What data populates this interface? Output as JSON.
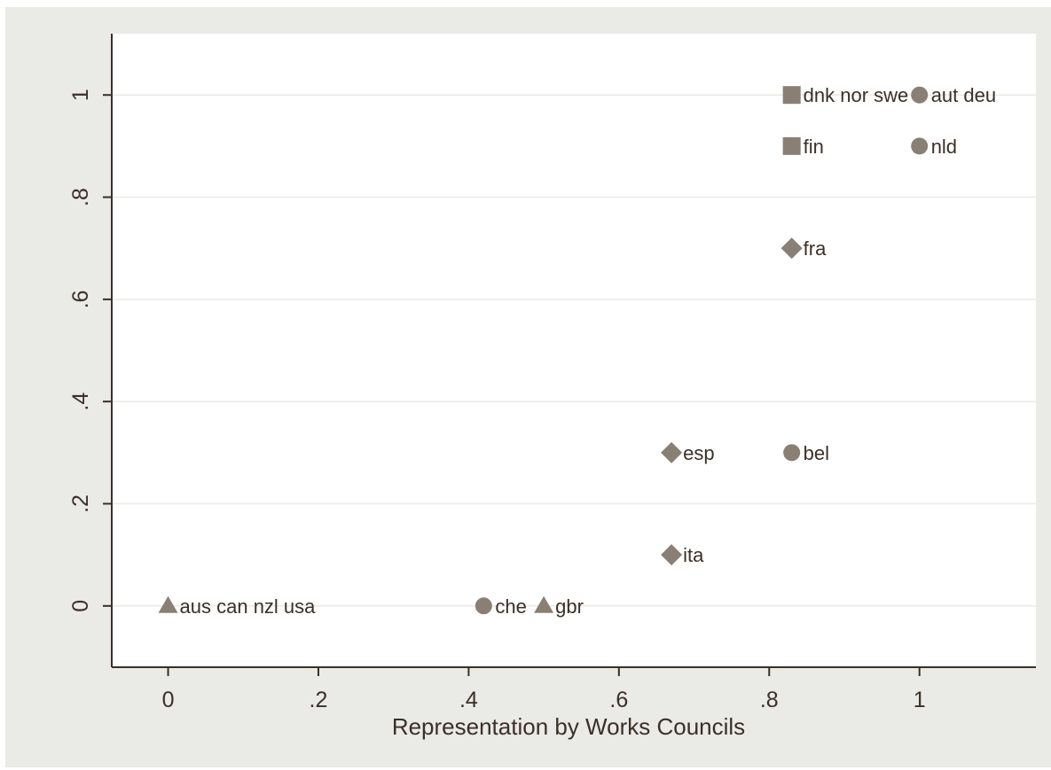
{
  "chart_data": {
    "type": "scatter",
    "title": "",
    "xlabel": "Representation by Works Councils",
    "ylabel": "",
    "xlim": [
      -0.075,
      1.155
    ],
    "ylim": [
      -0.12,
      1.12
    ],
    "xticks": [
      {
        "value": 0,
        "label": "0"
      },
      {
        "value": 0.2,
        "label": ".2"
      },
      {
        "value": 0.4,
        "label": ".4"
      },
      {
        "value": 0.6,
        "label": ".6"
      },
      {
        "value": 0.8,
        "label": ".8"
      },
      {
        "value": 1,
        "label": "1"
      }
    ],
    "yticks": [
      {
        "value": 0,
        "label": "0"
      },
      {
        "value": 0.2,
        "label": ".2"
      },
      {
        "value": 0.4,
        "label": ".4"
      },
      {
        "value": 0.6,
        "label": ".6"
      },
      {
        "value": 0.8,
        "label": ".8"
      },
      {
        "value": 1,
        "label": "1"
      }
    ],
    "grid": "horizontal",
    "marker_color": "#8a7f75",
    "points": [
      {
        "x": 0.83,
        "y": 1.0,
        "marker": "square",
        "label": "dnk nor swe"
      },
      {
        "x": 1.0,
        "y": 1.0,
        "marker": "circle",
        "label": "aut deu"
      },
      {
        "x": 0.83,
        "y": 0.9,
        "marker": "square",
        "label": "fin"
      },
      {
        "x": 1.0,
        "y": 0.9,
        "marker": "circle",
        "label": "nld"
      },
      {
        "x": 0.83,
        "y": 0.7,
        "marker": "diamond",
        "label": "fra"
      },
      {
        "x": 0.67,
        "y": 0.3,
        "marker": "diamond",
        "label": "esp"
      },
      {
        "x": 0.83,
        "y": 0.3,
        "marker": "circle",
        "label": "bel"
      },
      {
        "x": 0.67,
        "y": 0.1,
        "marker": "diamond",
        "label": "ita"
      },
      {
        "x": 0.0,
        "y": 0.0,
        "marker": "triangle",
        "label": "aus can nzl usa"
      },
      {
        "x": 0.42,
        "y": 0.0,
        "marker": "circle",
        "label": "che"
      },
      {
        "x": 0.5,
        "y": 0.0,
        "marker": "triangle",
        "label": "gbr"
      }
    ]
  }
}
